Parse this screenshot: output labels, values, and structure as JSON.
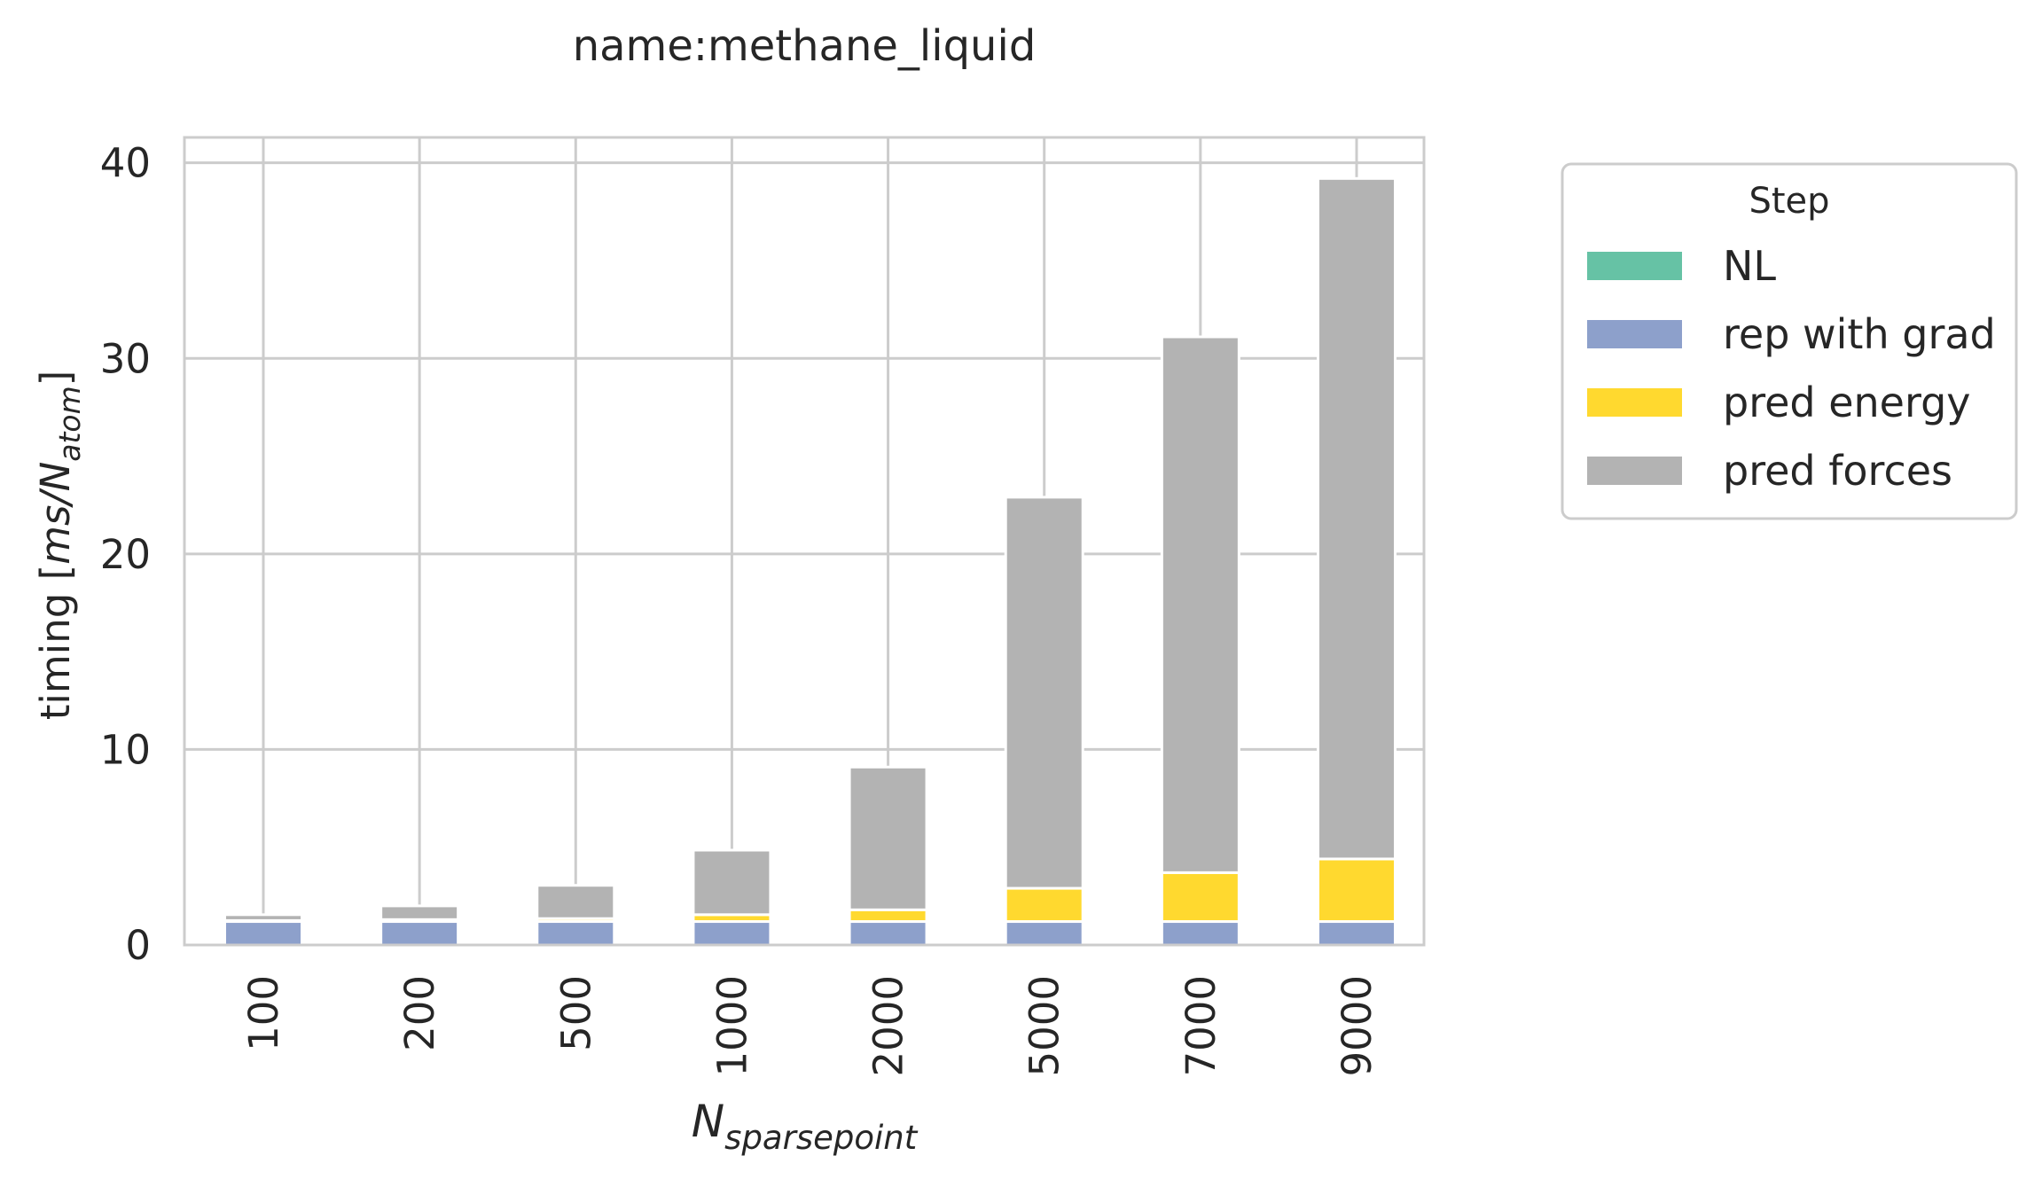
{
  "chart_data": {
    "type": "bar",
    "stacked": true,
    "title": "name:methane_liquid",
    "xlabel_main": "N",
    "xlabel_sub": "sparsepoint",
    "ylabel_prefix": "timing [",
    "ylabel_var": "ms/N",
    "ylabel_sub": "atom",
    "ylabel_suffix": "]",
    "categories": [
      "100",
      "200",
      "500",
      "1000",
      "2000",
      "5000",
      "7000",
      "9000"
    ],
    "yticks": [
      "0",
      "10",
      "20",
      "30",
      "40"
    ],
    "ylim": [
      0,
      41.3
    ],
    "grid": true,
    "legend": {
      "title": "Step",
      "placement": "outside-right-top"
    },
    "series": [
      {
        "name": "NL",
        "color": "#66c2a5",
        "values": [
          0.0,
          0.0,
          0.0,
          0.0,
          0.0,
          0.0,
          0.0,
          0.0
        ]
      },
      {
        "name": "rep with grad",
        "color": "#8da0cb",
        "values": [
          1.2,
          1.2,
          1.2,
          1.2,
          1.2,
          1.2,
          1.2,
          1.2
        ]
      },
      {
        "name": "pred energy",
        "color": "#ffd92f",
        "values": [
          0.05,
          0.1,
          0.15,
          0.35,
          0.6,
          1.7,
          2.5,
          3.2
        ]
      },
      {
        "name": "pred forces",
        "color": "#b3b3b3",
        "values": [
          0.3,
          0.7,
          1.7,
          3.3,
          7.3,
          20.0,
          27.4,
          34.8
        ]
      }
    ]
  }
}
